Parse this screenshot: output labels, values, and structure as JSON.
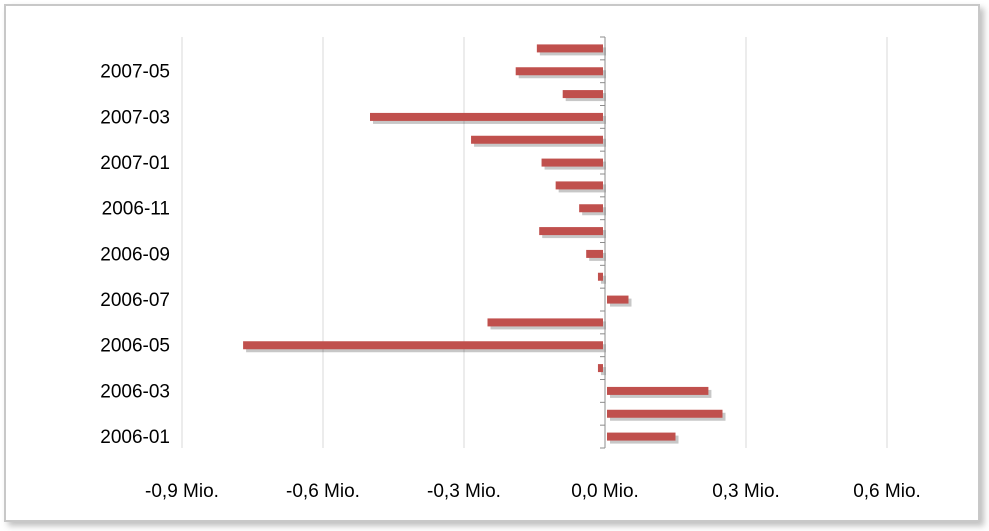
{
  "chart_data": {
    "type": "bar",
    "orientation": "horizontal",
    "title": "",
    "xlabel": "",
    "ylabel": "",
    "xlim": [
      -0.9,
      0.6
    ],
    "x_ticks": [
      -0.9,
      -0.6,
      -0.3,
      0.0,
      0.3,
      0.6
    ],
    "x_tick_labels": [
      "-0,9 Mio.",
      "-0,6 Mio.",
      "-0,3 Mio.",
      "0,0 Mio.",
      "0,3 Mio.",
      "0,6 Mio."
    ],
    "categories": [
      "2006-01",
      "2006-02",
      "2006-03",
      "2006-04",
      "2006-05",
      "2006-06",
      "2006-07",
      "2006-08",
      "2006-09",
      "2006-10",
      "2006-11",
      "2006-12",
      "2007-01",
      "2007-02",
      "2007-03",
      "2007-04",
      "2007-05",
      "2007-06"
    ],
    "category_labels_shown": [
      "2006-01",
      "2006-03",
      "2006-05",
      "2006-07",
      "2006-09",
      "2006-11",
      "2007-01",
      "2007-03",
      "2007-05"
    ],
    "values": [
      0.15,
      0.25,
      0.22,
      -0.015,
      -0.77,
      -0.25,
      0.05,
      -0.015,
      -0.04,
      -0.14,
      -0.055,
      -0.105,
      -0.135,
      -0.285,
      -0.5,
      -0.09,
      -0.19,
      -0.145
    ],
    "grid": {
      "x_major": true,
      "y_major": false
    },
    "legend": "none",
    "bar_color": "#c0504d"
  }
}
